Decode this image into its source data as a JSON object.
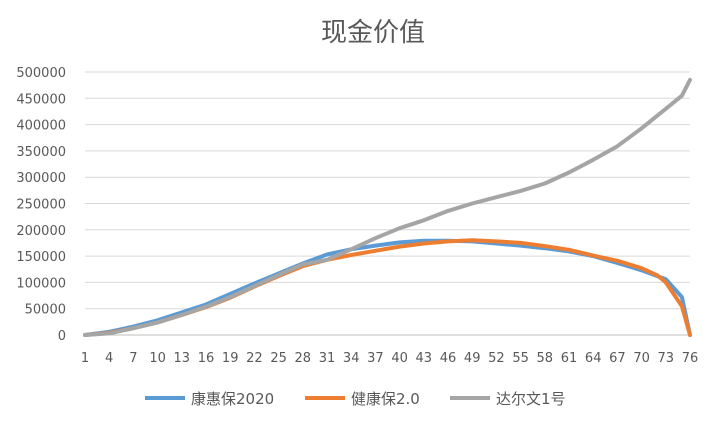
{
  "chart_data": {
    "type": "line",
    "title": "现金价值",
    "xlabel": "",
    "ylabel": "",
    "x_ticks": [
      1,
      4,
      7,
      10,
      13,
      16,
      19,
      22,
      25,
      28,
      31,
      34,
      37,
      40,
      43,
      46,
      49,
      52,
      55,
      58,
      61,
      64,
      67,
      70,
      73,
      76
    ],
    "ylim": [
      0,
      500000
    ],
    "y_ticks": [
      "0",
      "50000",
      "100000",
      "150000",
      "200000",
      "250000",
      "300000",
      "350000",
      "400000",
      "450000",
      "500000"
    ],
    "xlim": [
      1,
      76
    ],
    "grid": true,
    "legend_position": "bottom",
    "series": [
      {
        "name": "康惠保2020",
        "color": "#5b9bd5",
        "points": [
          [
            1,
            0
          ],
          [
            4,
            6000
          ],
          [
            7,
            16000
          ],
          [
            10,
            28000
          ],
          [
            13,
            43000
          ],
          [
            16,
            58000
          ],
          [
            19,
            78000
          ],
          [
            22,
            98000
          ],
          [
            25,
            117000
          ],
          [
            28,
            136000
          ],
          [
            31,
            153000
          ],
          [
            34,
            163000
          ],
          [
            37,
            170000
          ],
          [
            40,
            176000
          ],
          [
            43,
            179000
          ],
          [
            46,
            179000
          ],
          [
            49,
            178000
          ],
          [
            52,
            174000
          ],
          [
            55,
            170000
          ],
          [
            58,
            165000
          ],
          [
            61,
            159000
          ],
          [
            64,
            150000
          ],
          [
            67,
            137000
          ],
          [
            70,
            123000
          ],
          [
            73,
            106000
          ],
          [
            75,
            72000
          ],
          [
            76,
            0
          ]
        ]
      },
      {
        "name": "健康保2.0",
        "color": "#ed7d31",
        "points": [
          [
            1,
            0
          ],
          [
            4,
            4000
          ],
          [
            7,
            13000
          ],
          [
            10,
            24000
          ],
          [
            13,
            38000
          ],
          [
            16,
            53000
          ],
          [
            19,
            71000
          ],
          [
            22,
            92000
          ],
          [
            25,
            112000
          ],
          [
            28,
            131000
          ],
          [
            31,
            143000
          ],
          [
            34,
            152000
          ],
          [
            37,
            160000
          ],
          [
            40,
            168000
          ],
          [
            43,
            174000
          ],
          [
            46,
            178000
          ],
          [
            49,
            180000
          ],
          [
            52,
            178000
          ],
          [
            55,
            175000
          ],
          [
            58,
            169000
          ],
          [
            61,
            162000
          ],
          [
            64,
            151000
          ],
          [
            67,
            141000
          ],
          [
            70,
            127000
          ],
          [
            72,
            113000
          ],
          [
            73,
            100000
          ],
          [
            75,
            55000
          ],
          [
            76,
            0
          ]
        ]
      },
      {
        "name": "达尔文1号",
        "color": "#a5a5a5",
        "points": [
          [
            1,
            0
          ],
          [
            4,
            3000
          ],
          [
            7,
            13000
          ],
          [
            10,
            24000
          ],
          [
            13,
            38000
          ],
          [
            16,
            54000
          ],
          [
            19,
            72000
          ],
          [
            22,
            93000
          ],
          [
            25,
            114000
          ],
          [
            28,
            134000
          ],
          [
            31,
            143000
          ],
          [
            34,
            163000
          ],
          [
            37,
            184000
          ],
          [
            40,
            203000
          ],
          [
            43,
            218000
          ],
          [
            46,
            236000
          ],
          [
            49,
            250000
          ],
          [
            52,
            262000
          ],
          [
            55,
            274000
          ],
          [
            58,
            288000
          ],
          [
            61,
            309000
          ],
          [
            64,
            333000
          ],
          [
            67,
            359000
          ],
          [
            70,
            393000
          ],
          [
            73,
            430000
          ],
          [
            75,
            455000
          ],
          [
            76,
            485000
          ]
        ]
      }
    ]
  }
}
